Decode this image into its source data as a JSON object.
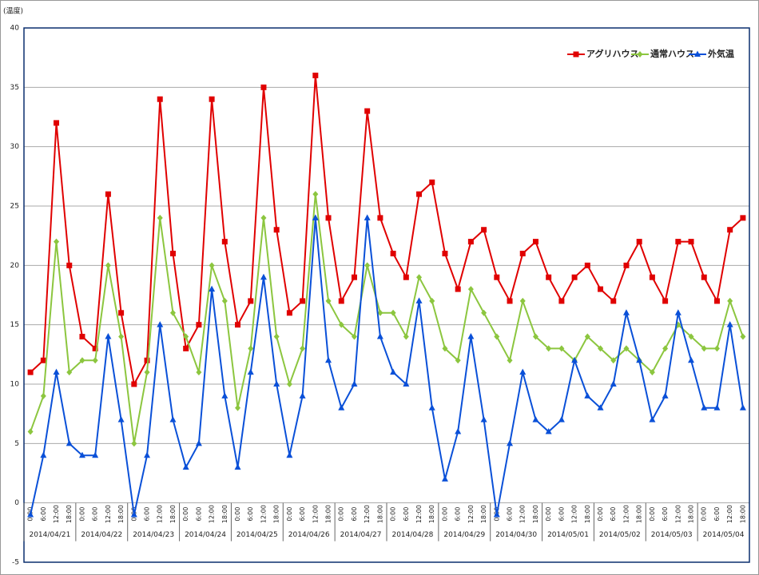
{
  "chart_data": {
    "type": "line",
    "y_label": "(温度)",
    "categories": [
      "0:00",
      "6:00",
      "12:00",
      "18:00",
      "0:00",
      "6:00",
      "12:00",
      "18:00",
      "0:00",
      "6:00",
      "12:00",
      "18:00",
      "0:00",
      "6:00",
      "12:00",
      "18:00",
      "0:00",
      "6:00",
      "12:00",
      "18:00",
      "0:00",
      "6:00",
      "12:00",
      "18:00",
      "0:00",
      "6:00",
      "12:00",
      "18:00",
      "0:00",
      "6:00",
      "12:00",
      "18:00",
      "0:00",
      "6:00",
      "12:00",
      "18:00",
      "0:00",
      "6:00",
      "12:00",
      "18:00",
      "0:00",
      "6:00",
      "12:00",
      "18:00",
      "0:00",
      "6:00",
      "12:00",
      "18:00",
      "0:00",
      "6:00",
      "12:00",
      "18:00",
      "0:00",
      "6:00",
      "12:00",
      "18:00"
    ],
    "groups": [
      "2014/04/21",
      "2014/04/22",
      "2014/04/23",
      "2014/04/24",
      "2014/04/25",
      "2014/04/26",
      "2014/04/27",
      "2014/04/28",
      "2014/04/29",
      "2014/04/30",
      "2014/05/01",
      "2014/05/02",
      "2014/05/03",
      "2014/05/04"
    ],
    "series": [
      {
        "name": "アグリハウス",
        "color": "#e00000",
        "marker": "square",
        "values": [
          11,
          12,
          32,
          20,
          14,
          13,
          26,
          16,
          10,
          12,
          34,
          21,
          13,
          15,
          34,
          22,
          15,
          17,
          35,
          23,
          16,
          17,
          36,
          24,
          17,
          19,
          33,
          24,
          21,
          19,
          26,
          27,
          21,
          18,
          22,
          23,
          19,
          17,
          21,
          22,
          19,
          17,
          19,
          20,
          18,
          17,
          20,
          22,
          19,
          17,
          22,
          22,
          19,
          17,
          23,
          24
        ]
      },
      {
        "name": "通常ハウス",
        "color": "#8cc63f",
        "marker": "diamond",
        "values": [
          6,
          9,
          22,
          11,
          12,
          12,
          20,
          14,
          5,
          11,
          24,
          16,
          14,
          11,
          20,
          17,
          8,
          13,
          24,
          14,
          10,
          13,
          26,
          17,
          15,
          14,
          20,
          16,
          16,
          14,
          19,
          17,
          13,
          12,
          18,
          16,
          14,
          12,
          17,
          14,
          13,
          13,
          12,
          14,
          13,
          12,
          13,
          12,
          11,
          13,
          15,
          14,
          13,
          13,
          17,
          14
        ]
      },
      {
        "name": "外気温",
        "color": "#0a50d8",
        "marker": "triangle",
        "values": [
          -1,
          4,
          11,
          5,
          4,
          4,
          14,
          7,
          -1,
          4,
          15,
          7,
          3,
          5,
          18,
          9,
          3,
          11,
          19,
          10,
          4,
          9,
          24,
          12,
          8,
          10,
          24,
          14,
          11,
          10,
          17,
          8,
          2,
          6,
          14,
          7,
          -1,
          5,
          11,
          7,
          6,
          7,
          12,
          9,
          8,
          10,
          16,
          12,
          7,
          9,
          16,
          12,
          8,
          8,
          15,
          8
        ]
      }
    ],
    "ylim": [
      -5,
      40
    ],
    "yticks": [
      -5,
      0,
      5,
      10,
      15,
      20,
      25,
      30,
      35,
      40
    ],
    "grid": true,
    "legend": "upper right"
  }
}
